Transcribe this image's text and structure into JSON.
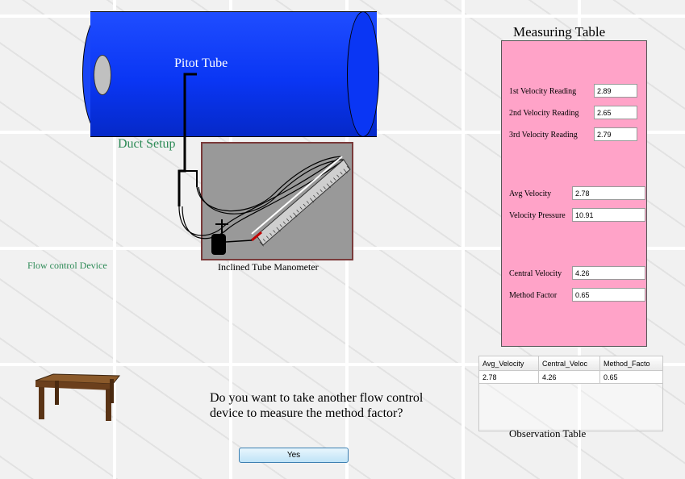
{
  "duct": {
    "pitot_label": "Pitot Tube",
    "setup_label": "Duct Setup",
    "flow_control_label": "Flow control Device"
  },
  "manometer": {
    "label": "Inclined Tube Manometer"
  },
  "measuring_table": {
    "title": "Measuring Table",
    "fields": [
      {
        "label": "1st Velocity Reading",
        "value": "2.89"
      },
      {
        "label": "2nd Velocity Reading",
        "value": "2.65"
      },
      {
        "label": "3rd Velocity Reading",
        "value": "2.79"
      },
      {
        "label": "Avg Velocity",
        "value": "2.78"
      },
      {
        "label": "Velocity Pressure",
        "value": "10.91"
      },
      {
        "label": "Central Velocity",
        "value": "4.26"
      },
      {
        "label": "Method Factor",
        "value": "0.65"
      }
    ]
  },
  "observation_table": {
    "label": "Observation Table",
    "columns": [
      "Avg_Velocity",
      "Central_Veloc",
      "Method_Facto"
    ],
    "rows": [
      [
        "2.78",
        "4.26",
        "0.65"
      ]
    ]
  },
  "prompt": {
    "question": "Do you want to take another flow control device to measure the method factor?",
    "yes_label": "Yes"
  },
  "colors": {
    "duct": "#0a36f4",
    "panel": "#ffa3c8",
    "label_green": "#2e8b57",
    "manometer_bg": "#999999"
  }
}
